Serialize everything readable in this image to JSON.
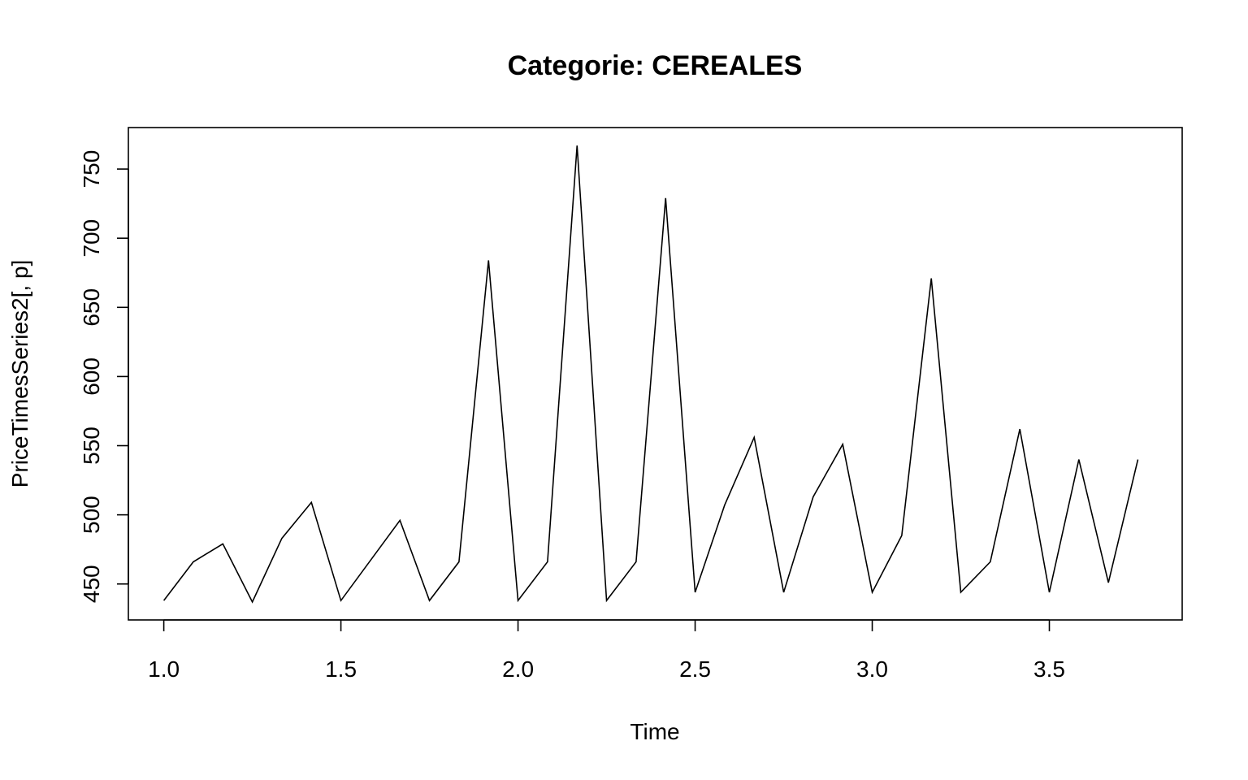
{
  "chart_data": {
    "type": "line",
    "title": "Categorie: CEREALES",
    "xlabel": "Time",
    "ylabel": "PriceTimesSeries2[, p]",
    "xlim": [
      0.9,
      3.875
    ],
    "ylim": [
      424,
      780
    ],
    "x_ticks": [
      1.0,
      1.5,
      2.0,
      2.5,
      3.0,
      3.5
    ],
    "x_tick_labels": [
      "1.0",
      "1.5",
      "2.0",
      "2.5",
      "3.0",
      "3.5"
    ],
    "y_ticks": [
      450,
      500,
      550,
      600,
      650,
      700,
      750
    ],
    "y_tick_labels": [
      "450",
      "500",
      "550",
      "600",
      "650",
      "700",
      "750"
    ],
    "grid": false,
    "color": "#000000",
    "series": [
      {
        "x": [
          1.0,
          1.0833,
          1.1667,
          1.25,
          1.3333,
          1.4167,
          1.5,
          1.5833,
          1.6667,
          1.75,
          1.8333,
          1.9167,
          2.0,
          2.0833,
          2.1667,
          2.25,
          2.3333,
          2.4167,
          2.5,
          2.5833,
          2.6667,
          2.75,
          2.8333,
          2.9167,
          3.0,
          3.0833,
          3.1667,
          3.25,
          3.3333,
          3.4167,
          3.5,
          3.5833,
          3.6667,
          3.75
        ],
        "values": [
          438,
          466,
          479,
          437,
          483,
          509,
          438,
          467,
          496,
          438,
          466,
          684,
          438,
          466,
          767,
          438,
          466,
          729,
          444,
          507,
          556,
          444,
          513,
          551,
          444,
          485,
          671,
          444,
          466,
          562,
          444,
          540,
          451,
          540
        ]
      }
    ]
  }
}
